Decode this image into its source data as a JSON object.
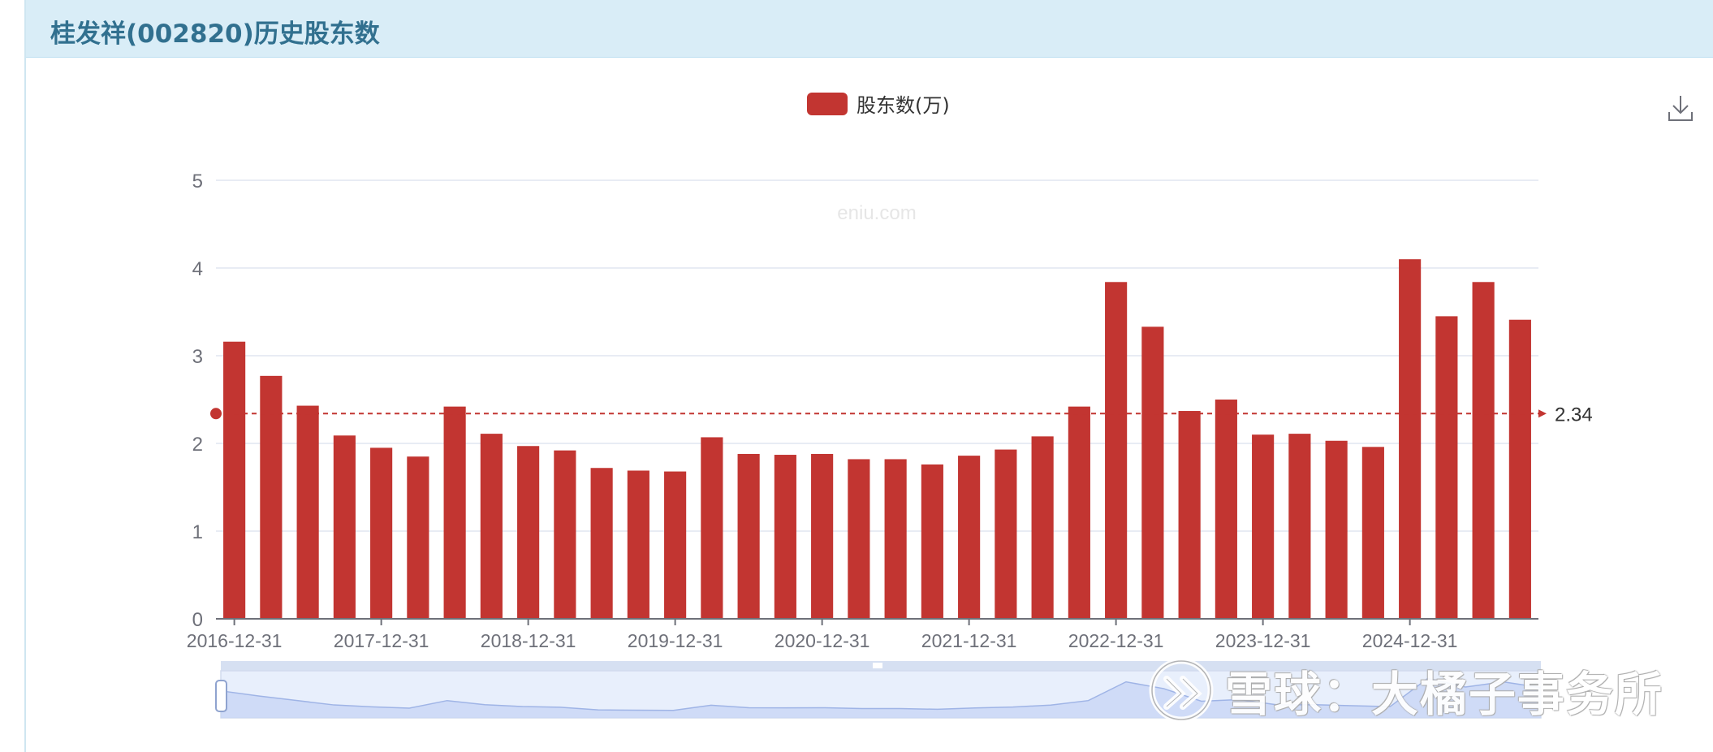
{
  "header": {
    "title": "桂发祥(002820)历史股东数"
  },
  "watermark": {
    "site": "eniu.com",
    "overlay": "雪球：大橘子事务所"
  },
  "toolbar": {
    "download_icon": "download-icon"
  },
  "colors": {
    "bar": "#c23531",
    "header_bg": "#d9edf7",
    "title": "#31708f",
    "grid": "#e0e6f1",
    "axis": "#6e7079"
  },
  "chart_data": {
    "type": "bar",
    "legend": [
      "股东数(万)"
    ],
    "legend_position": "top-center",
    "categories": [
      "2016-12-31",
      "2017-03-31",
      "2017-06-30",
      "2017-09-30",
      "2017-12-31",
      "2018-03-31",
      "2018-06-30",
      "2018-09-30",
      "2018-12-31",
      "2019-03-31",
      "2019-06-30",
      "2019-09-30",
      "2019-12-31",
      "2020-03-31",
      "2020-06-30",
      "2020-09-30",
      "2020-12-31",
      "2021-03-31",
      "2021-06-30",
      "2021-09-30",
      "2021-12-31",
      "2022-03-31",
      "2022-06-30",
      "2022-09-30",
      "2022-12-31",
      "2023-03-31",
      "2023-06-30",
      "2023-09-30",
      "2023-12-31",
      "2024-03-31",
      "2024-06-30",
      "2024-09-30",
      "2024-12-31",
      "2025-03-31",
      "2025-06-30",
      "2025-09-30"
    ],
    "x_tick_labels": [
      "2016-12-31",
      "2017-12-31",
      "2018-12-31",
      "2019-12-31",
      "2020-12-31",
      "2021-12-31",
      "2022-12-31",
      "2023-12-31",
      "2024-12-31"
    ],
    "series": [
      {
        "name": "股东数(万)",
        "values": [
          3.16,
          2.77,
          2.43,
          2.09,
          1.95,
          1.85,
          2.42,
          2.11,
          1.97,
          1.92,
          1.72,
          1.69,
          1.68,
          2.07,
          1.88,
          1.87,
          1.88,
          1.82,
          1.82,
          1.76,
          1.86,
          1.93,
          2.08,
          2.42,
          3.84,
          3.33,
          2.37,
          2.5,
          2.1,
          2.11,
          2.03,
          1.96,
          4.1,
          3.45,
          3.84,
          3.41
        ]
      }
    ],
    "average_line": {
      "value": 2.34,
      "label": "2.34"
    },
    "ylim": [
      0,
      5
    ],
    "y_ticks": [
      0,
      1,
      2,
      3,
      4,
      5
    ],
    "grid": true
  }
}
